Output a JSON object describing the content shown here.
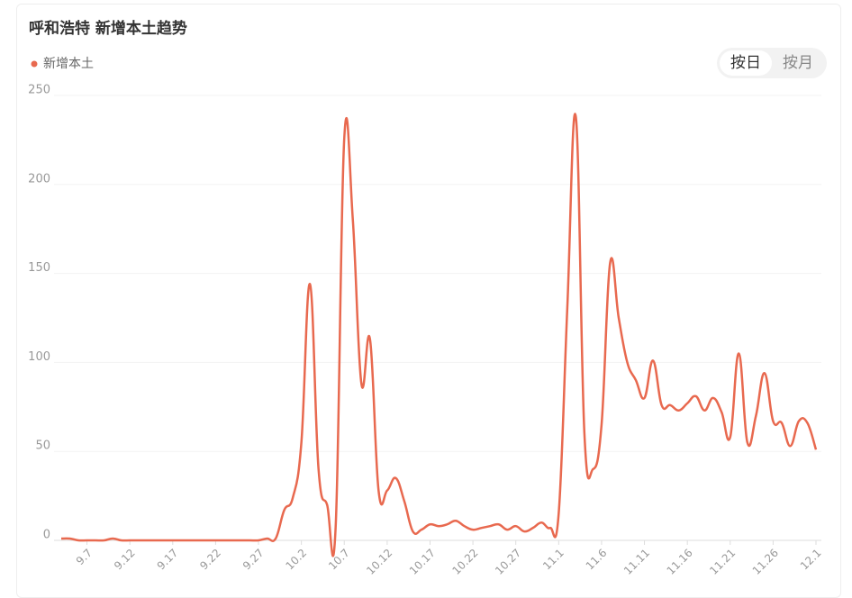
{
  "chart_data": {
    "type": "line",
    "title": "呼和浩特 新增本土趋势",
    "categories": [
      null,
      null,
      null,
      "9.7",
      null,
      null,
      null,
      null,
      "9.12",
      null,
      null,
      null,
      null,
      "9.17",
      null,
      null,
      null,
      null,
      "9.22",
      null,
      null,
      null,
      null,
      "9.27",
      null,
      null,
      null,
      null,
      "10.2",
      null,
      null,
      null,
      null,
      "10.7",
      null,
      null,
      null,
      null,
      "10.12",
      null,
      null,
      null,
      null,
      "10.17",
      null,
      null,
      null,
      null,
      "10.22",
      null,
      null,
      null,
      null,
      "10.27",
      null,
      null,
      null,
      null,
      "11.1",
      null,
      null,
      null,
      null,
      "11.6",
      null,
      null,
      null,
      null,
      "11.11",
      null,
      null,
      null,
      null,
      "11.16",
      null,
      null,
      null,
      null,
      "11.21",
      null,
      null,
      null,
      null,
      "11.26",
      null,
      null,
      null,
      null,
      "12.1"
    ],
    "series": [
      {
        "name": "新增本土",
        "color": "#e8694f",
        "values": [
          1,
          1,
          0,
          0,
          0,
          0,
          1,
          0,
          0,
          0,
          0,
          0,
          0,
          0,
          0,
          0,
          0,
          0,
          0,
          0,
          0,
          0,
          0,
          0,
          1,
          1,
          17,
          24,
          55,
          144,
          40,
          20,
          8,
          226,
          180,
          88,
          113,
          28,
          28,
          35,
          22,
          5,
          6,
          9,
          8,
          9,
          11,
          8,
          6,
          7,
          8,
          9,
          6,
          8,
          5,
          7,
          10,
          7,
          15,
          130,
          238,
          60,
          40,
          65,
          156,
          125,
          100,
          90,
          80,
          101,
          76,
          76,
          73,
          77,
          81,
          73,
          80,
          72,
          58,
          105,
          55,
          70,
          94,
          67,
          66,
          53,
          67,
          66,
          51
        ]
      }
    ],
    "ylim": [
      0,
      250
    ],
    "yticks": [
      0,
      50,
      100,
      150,
      200,
      250
    ],
    "grid": true
  },
  "controls": {
    "toggle": [
      "按日",
      "按月"
    ],
    "selected": 0
  }
}
